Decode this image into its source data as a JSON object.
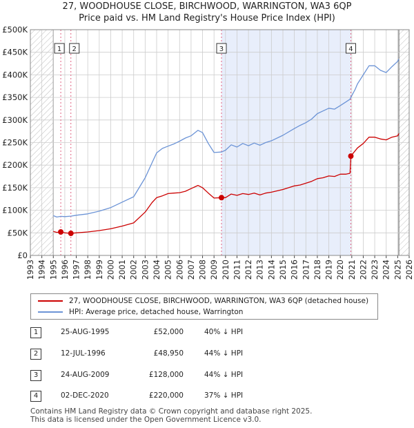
{
  "title_line1": "27, WOODHOUSE CLOSE, BIRCHWOOD, WARRINGTON, WA3 6QP",
  "title_line2": "Price paid vs. HM Land Registry's House Price Index (HPI)",
  "colors": {
    "property": "#cc0000",
    "hpi": "#6b93d6",
    "shade": "#e8eefb",
    "grid": "#cccccc"
  },
  "chart_data": {
    "type": "line",
    "title": "27, WOODHOUSE CLOSE, BIRCHWOOD, WARRINGTON, WA3 6QP",
    "subtitle": "Price paid vs. HM Land Registry's House Price Index (HPI)",
    "xlabel": "",
    "ylabel": "",
    "xlim": [
      1993,
      2026
    ],
    "ylim": [
      0,
      500000
    ],
    "y_ticks": [
      {
        "value": 0,
        "label": "£0"
      },
      {
        "value": 50000,
        "label": "£50K"
      },
      {
        "value": 100000,
        "label": "£100K"
      },
      {
        "value": 150000,
        "label": "£150K"
      },
      {
        "value": 200000,
        "label": "£200K"
      },
      {
        "value": 250000,
        "label": "£250K"
      },
      {
        "value": 300000,
        "label": "£300K"
      },
      {
        "value": 350000,
        "label": "£350K"
      },
      {
        "value": 400000,
        "label": "£400K"
      },
      {
        "value": 450000,
        "label": "£450K"
      },
      {
        "value": 500000,
        "label": "£500K"
      }
    ],
    "x_ticks": [
      "1993",
      "1994",
      "1995",
      "1996",
      "1997",
      "1998",
      "1999",
      "2000",
      "2001",
      "2002",
      "2003",
      "2004",
      "2005",
      "2006",
      "2007",
      "2008",
      "2009",
      "2010",
      "2011",
      "2012",
      "2013",
      "2014",
      "2015",
      "2016",
      "2017",
      "2018",
      "2019",
      "2020",
      "2021",
      "2022",
      "2023",
      "2024",
      "2025",
      "2026"
    ],
    "grid": true,
    "hatched_before": 1995.0,
    "hatched_after": 2025.1,
    "shaded_between": [
      2009.65,
      2020.92
    ],
    "series": [
      {
        "name": "27, WOODHOUSE CLOSE, BIRCHWOOD, WARRINGTON, WA3 6QP (detached house)",
        "color": "#cc0000",
        "x": [
          1995.0,
          1995.3,
          1995.65,
          1996.0,
          1996.53,
          1997.0,
          1998.0,
          1999.0,
          2000.0,
          2001.0,
          2002.0,
          2003.0,
          2003.6,
          2004.0,
          2004.5,
          2005.0,
          2005.5,
          2006.0,
          2006.5,
          2007.0,
          2007.6,
          2008.0,
          2008.5,
          2009.0,
          2009.65,
          2010.0,
          2010.5,
          2011.0,
          2011.5,
          2012.0,
          2012.5,
          2013.0,
          2013.5,
          2014.0,
          2015.0,
          2016.0,
          2016.5,
          2017.0,
          2017.5,
          2018.0,
          2018.5,
          2019.0,
          2019.5,
          2020.0,
          2020.5,
          2020.85,
          2020.92,
          2021.3,
          2021.5,
          2022.0,
          2022.5,
          2023.0,
          2023.5,
          2024.0,
          2024.5,
          2025.0,
          2025.1
        ],
        "y": [
          53000,
          51000,
          52000,
          50000,
          48950,
          50000,
          52000,
          55000,
          59000,
          65000,
          72000,
          96000,
          117000,
          128000,
          132000,
          137000,
          138000,
          139000,
          142000,
          148000,
          155000,
          150000,
          138000,
          127000,
          128000,
          128000,
          136000,
          133000,
          137000,
          135000,
          138000,
          134000,
          138000,
          140000,
          146000,
          154000,
          156000,
          160000,
          164000,
          170000,
          172000,
          176000,
          175000,
          180000,
          180000,
          182000,
          220000,
          232000,
          238000,
          248000,
          262000,
          262000,
          258000,
          256000,
          262000,
          265000,
          270000
        ]
      },
      {
        "name": "HPI: Average price, detached house, Warrington",
        "color": "#6b93d6",
        "x": [
          1995.0,
          1995.3,
          1995.65,
          1996.0,
          1996.53,
          1997.0,
          1998.0,
          1999.0,
          2000.0,
          2001.0,
          2002.0,
          2003.0,
          2003.6,
          2004.0,
          2004.5,
          2005.0,
          2005.5,
          2006.0,
          2006.5,
          2007.0,
          2007.6,
          2008.0,
          2008.5,
          2009.0,
          2009.65,
          2010.0,
          2010.5,
          2011.0,
          2011.5,
          2012.0,
          2012.5,
          2013.0,
          2013.5,
          2014.0,
          2015.0,
          2016.0,
          2016.5,
          2017.0,
          2017.5,
          2018.0,
          2018.5,
          2019.0,
          2019.5,
          2020.0,
          2020.5,
          2020.85,
          2020.92,
          2021.3,
          2021.5,
          2022.0,
          2022.5,
          2023.0,
          2023.5,
          2024.0,
          2024.5,
          2025.0,
          2025.1
        ],
        "y": [
          88000,
          85000,
          86500,
          86000,
          87000,
          89000,
          92000,
          98000,
          106000,
          118000,
          130000,
          172000,
          205000,
          227000,
          237000,
          242000,
          247000,
          253000,
          260000,
          265000,
          277000,
          272000,
          248000,
          228000,
          229000,
          233000,
          245000,
          240000,
          248000,
          243000,
          249000,
          244000,
          250000,
          254000,
          266000,
          281000,
          288000,
          294000,
          302000,
          314000,
          320000,
          326000,
          324000,
          332000,
          340000,
          346000,
          350000,
          368000,
          380000,
          400000,
          420000,
          420000,
          410000,
          405000,
          418000,
          430000,
          435000
        ]
      }
    ],
    "transactions": [
      {
        "label": "1",
        "x": 1995.65,
        "price": 52000
      },
      {
        "label": "2",
        "x": 1996.53,
        "price": 48950
      },
      {
        "label": "3",
        "x": 2009.65,
        "price": 128000
      },
      {
        "label": "4",
        "x": 2020.92,
        "price": 220000
      }
    ]
  },
  "legend": {
    "property": "27, WOODHOUSE CLOSE, BIRCHWOOD, WARRINGTON, WA3 6QP (detached house)",
    "hpi": "HPI: Average price, detached house, Warrington"
  },
  "table": [
    {
      "num": "1",
      "date": "25-AUG-1995",
      "price": "£52,000",
      "hpi": "40% ↓ HPI"
    },
    {
      "num": "2",
      "date": "12-JUL-1996",
      "price": "£48,950",
      "hpi": "44% ↓ HPI"
    },
    {
      "num": "3",
      "date": "24-AUG-2009",
      "price": "£128,000",
      "hpi": "44% ↓ HPI"
    },
    {
      "num": "4",
      "date": "02-DEC-2020",
      "price": "£220,000",
      "hpi": "37% ↓ HPI"
    }
  ],
  "footer_line1": "Contains HM Land Registry data © Crown copyright and database right 2025.",
  "footer_line2": "This data is licensed under the Open Government Licence v3.0."
}
